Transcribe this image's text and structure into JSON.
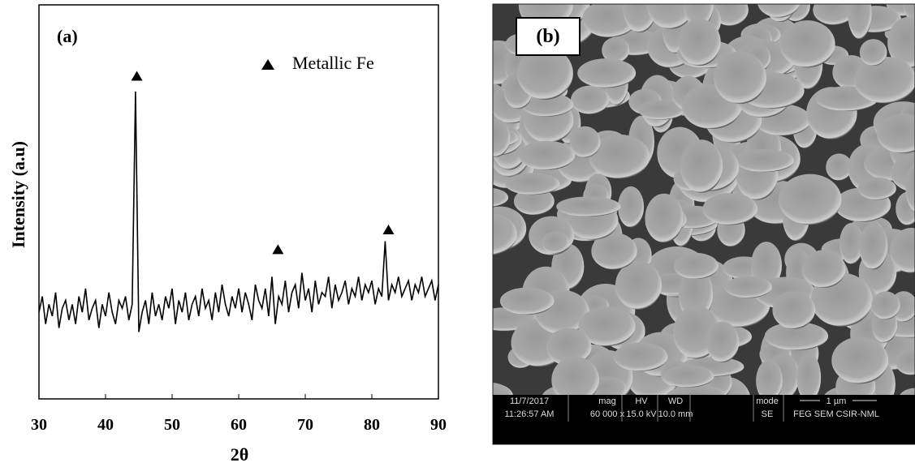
{
  "chart_data": {
    "type": "line",
    "panel_label": "(a)",
    "xlabel": "2θ",
    "ylabel": "Intensity (a.u)",
    "xlim": [
      30,
      90
    ],
    "ylim": [
      0,
      100
    ],
    "xticks": [
      30,
      40,
      50,
      60,
      70,
      80,
      90
    ],
    "yticks": [],
    "x": [
      30,
      30.5,
      31,
      31.5,
      32,
      32.5,
      33,
      33.5,
      34,
      34.5,
      35,
      35.5,
      36,
      36.5,
      37,
      37.5,
      38,
      38.5,
      39,
      39.5,
      40,
      40.5,
      41,
      41.5,
      42,
      42.5,
      43,
      43.5,
      44,
      44.5,
      45,
      45.5,
      46,
      46.5,
      47,
      47.5,
      48,
      48.5,
      49,
      49.5,
      50,
      50.5,
      51,
      51.5,
      52,
      52.5,
      53,
      53.5,
      54,
      54.5,
      55,
      55.5,
      56,
      56.5,
      57,
      57.5,
      58,
      58.5,
      59,
      59.5,
      60,
      60.5,
      61,
      61.5,
      62,
      62.5,
      63,
      63.5,
      64,
      64.5,
      65,
      65.5,
      66,
      66.5,
      67,
      67.5,
      68,
      68.5,
      69,
      69.5,
      70,
      70.5,
      71,
      71.5,
      72,
      72.5,
      73,
      73.5,
      74,
      74.5,
      75,
      75.5,
      76,
      76.5,
      77,
      77.5,
      78,
      78.5,
      79,
      79.5,
      80,
      80.5,
      81,
      81.5,
      82,
      82.5,
      83,
      83.5,
      84,
      84.5,
      85,
      85.5,
      86,
      86.5,
      87,
      87.5,
      88,
      88.5,
      89,
      89.5,
      90
    ],
    "series": [
      {
        "name": "Metallic Fe",
        "color": "#000000",
        "values": [
          22,
          26,
          19,
          24,
          21,
          27,
          18,
          23,
          25,
          20,
          24,
          19,
          26,
          22,
          28,
          20,
          23,
          25,
          18,
          24,
          21,
          27,
          22,
          19,
          25,
          23,
          26,
          20,
          24,
          78,
          17,
          22,
          25,
          19,
          27,
          21,
          24,
          20,
          26,
          23,
          28,
          19,
          25,
          22,
          27,
          20,
          24,
          26,
          21,
          28,
          23,
          25,
          20,
          27,
          22,
          29,
          24,
          21,
          26,
          23,
          28,
          22,
          27,
          24,
          20,
          29,
          25,
          23,
          28,
          21,
          31,
          19,
          26,
          24,
          30,
          22,
          27,
          29,
          23,
          32,
          25,
          28,
          22,
          30,
          24,
          27,
          26,
          31,
          23,
          29,
          25,
          27,
          30,
          24,
          28,
          26,
          31,
          25,
          29,
          27,
          30,
          24,
          28,
          26,
          40,
          25,
          29,
          27,
          31,
          26,
          28,
          30,
          25,
          29,
          27,
          31,
          26,
          28,
          30,
          25,
          29
        ]
      }
    ],
    "peak_markers": {
      "x": [
        44.7,
        65.9,
        82.5
      ],
      "y": [
        82,
        38,
        43
      ]
    }
  },
  "sem_panel": {
    "label": "(b)",
    "info_bar": [
      "11/7/2017",
      "11:26:57 AM",
      "mag",
      "60 000 x",
      "HV",
      "15.0 kV",
      "WD",
      "10.0 mm",
      "mode",
      "SE",
      "1 µm",
      "FEG SEM CSIR-NML"
    ]
  }
}
